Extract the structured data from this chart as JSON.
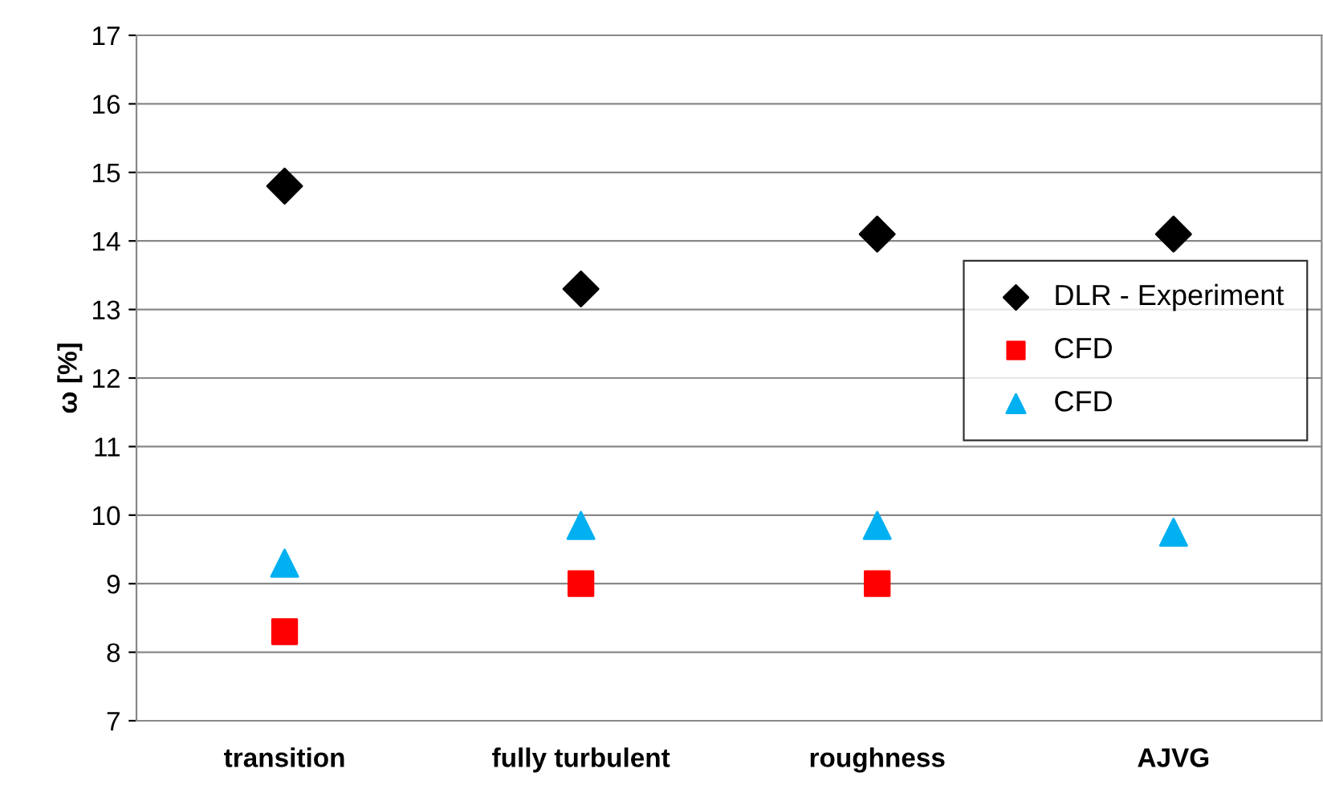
{
  "chart_data": {
    "type": "scatter",
    "ylabel": "ω [%]",
    "categories": [
      "transition",
      "fully turbulent",
      "roughness",
      "AJVG"
    ],
    "series": [
      {
        "name": "DLR - Experiment",
        "color": "#000000",
        "marker": "diamond",
        "values": [
          14.8,
          13.3,
          14.1,
          14.1
        ]
      },
      {
        "name": "CFD",
        "color": "#ff0000",
        "marker": "square",
        "values": [
          8.3,
          9.0,
          9.0,
          null
        ]
      },
      {
        "name": "CFD",
        "color": "#00b0f0",
        "marker": "triangle",
        "values": [
          9.3,
          9.85,
          9.85,
          9.75
        ]
      }
    ],
    "ylim": [
      7,
      17
    ],
    "yticks": [
      7,
      8,
      9,
      10,
      11,
      12,
      13,
      14,
      15,
      16,
      17
    ],
    "grid": "y",
    "legend": "right"
  }
}
